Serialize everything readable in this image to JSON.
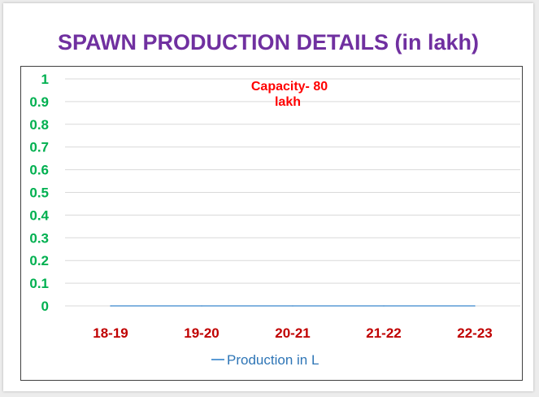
{
  "slide": {
    "title": "SPAWN PRODUCTION DETAILS (in lakh)"
  },
  "chart_data": {
    "type": "line",
    "title": "",
    "xlabel": "",
    "ylabel": "",
    "categories": [
      "18-19",
      "19-20",
      "20-21",
      "21-22",
      "22-23"
    ],
    "series": [
      {
        "name": "Production in L",
        "values": [
          0,
          0,
          0,
          0,
          0
        ],
        "color": "#5b9bd5"
      }
    ],
    "ylim": [
      0,
      1
    ],
    "yticks": [
      "0",
      "0.1",
      "0.2",
      "0.3",
      "0.4",
      "0.5",
      "0.6",
      "0.7",
      "0.8",
      "0.9",
      "1"
    ],
    "grid": true,
    "legend": "bottom",
    "annotation": {
      "line1": "Capacity- 80",
      "line2": "lakh"
    },
    "colors": {
      "ytick": "#00b050",
      "xtick": "#c00000",
      "annotation": "#ff0000",
      "grid": "#d9d9d9",
      "legend_text": "#2e75b6"
    }
  }
}
